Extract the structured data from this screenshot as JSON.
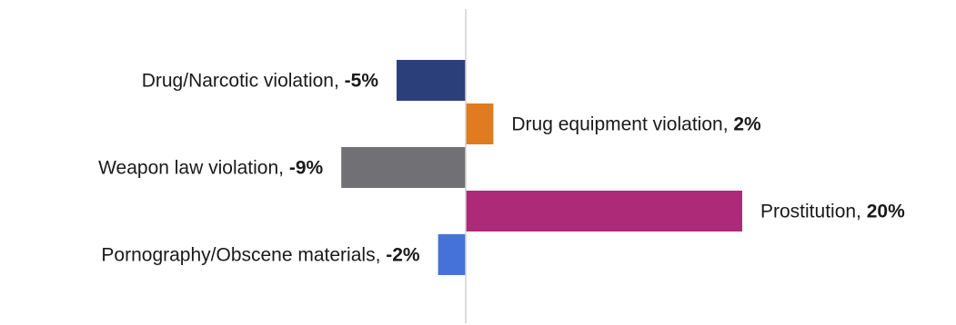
{
  "chart_data": {
    "type": "bar",
    "orientation": "horizontal",
    "categories": [
      "Drug/Narcotic violation",
      "Drug equipment violation",
      "Weapon law violation",
      "Prostitution",
      "Pornography/Obscene materials"
    ],
    "values": [
      -5,
      2,
      -9,
      20,
      -2
    ],
    "value_labels": [
      "-5%",
      "2%",
      "-9%",
      "20%",
      "-2%"
    ],
    "colors": [
      "#2b3f7a",
      "#e07b20",
      "#717075",
      "#ad2a78",
      "#4472d8"
    ],
    "axis_color": "#d0d0d0",
    "title": "",
    "xlabel": "",
    "ylabel": "",
    "grid": false,
    "legend": "none"
  }
}
